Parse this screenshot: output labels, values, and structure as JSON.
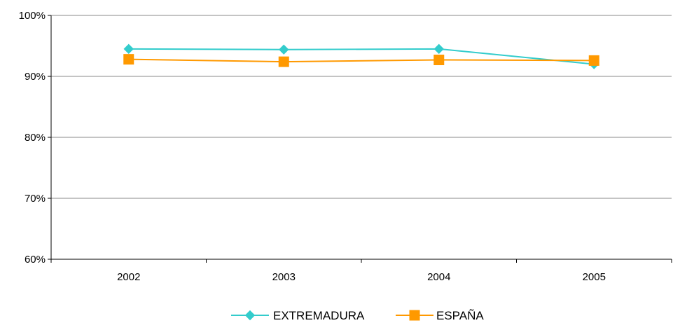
{
  "chart_data": {
    "type": "line",
    "title": "",
    "xlabel": "",
    "ylabel": "",
    "categories": [
      "2002",
      "2003",
      "2004",
      "2005"
    ],
    "ylim": [
      0.6,
      1.0
    ],
    "yticks": [
      0.6,
      0.7,
      0.8,
      0.9,
      1.0
    ],
    "ytick_labels": [
      "60%",
      "70%",
      "80%",
      "90%",
      "100%"
    ],
    "grid": true,
    "legend_position": "bottom",
    "series": [
      {
        "name": "EXTREMADURA",
        "values": [
          0.945,
          0.944,
          0.945,
          0.92
        ],
        "color": "#33cccc",
        "marker": "diamond"
      },
      {
        "name": "ESPAÑA",
        "values": [
          0.928,
          0.924,
          0.927,
          0.926
        ],
        "color": "#ff9900",
        "marker": "square"
      }
    ]
  }
}
